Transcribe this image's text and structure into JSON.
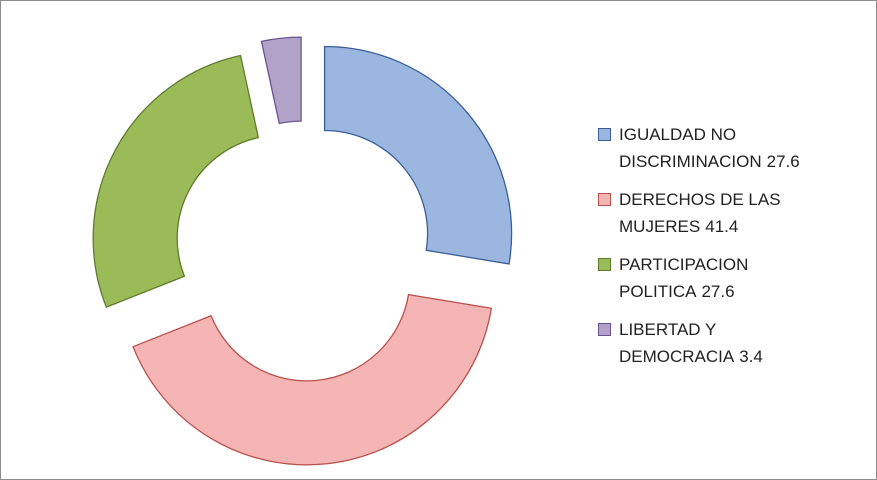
{
  "chart_data": {
    "type": "donut",
    "categories": [
      "IGUALDAD NO DISCRIMINACION",
      "DERECHOS DE LAS MUJERES",
      "PARTICIPACION POLITICA",
      "LIBERTAD Y DEMOCRACIA"
    ],
    "values": [
      27.6,
      41.4,
      27.6,
      3.4
    ],
    "colors": [
      "#9bb7e0",
      "#f5b5b4",
      "#9bbb59",
      "#b3a2c7"
    ],
    "stroke_colors": [
      "#3a5f98",
      "#b9504c",
      "#5f7b2d",
      "#6a5294"
    ],
    "legend": "right"
  }
}
